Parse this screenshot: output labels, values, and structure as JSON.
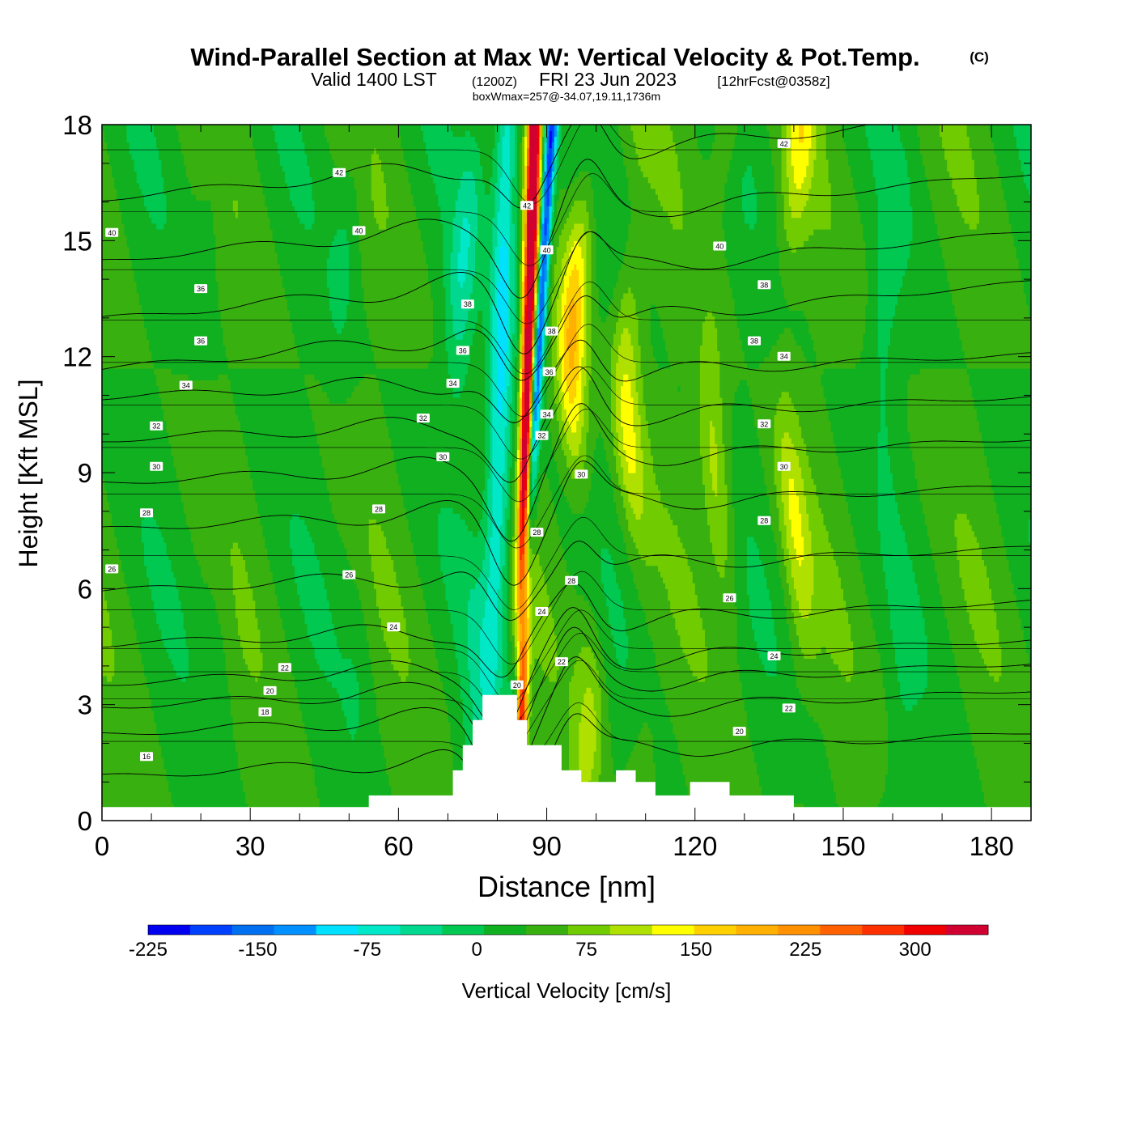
{
  "header": {
    "title": "Wind-Parallel Section at Max W: Vertical Velocity & Pot.Temp.",
    "copyright": "(C)",
    "valid_prefix": "Valid 1400 LST",
    "valid_zulu": "(1200Z)",
    "valid_date": "FRI 23 Jun 2023",
    "forecast": "[12hrFcst@0358z]",
    "box_info": "boxWmax=257@-34.07,19.11,1736m"
  },
  "chart_data": {
    "type": "heatmap",
    "title": "Wind-Parallel Section at Max W: Vertical Velocity & Pot.Temp.",
    "xlabel": "Distance [nm]",
    "ylabel": "Height [Kft MSL]",
    "xlim": [
      0,
      188
    ],
    "ylim": [
      0,
      18
    ],
    "x_ticks": [
      0,
      30,
      60,
      90,
      120,
      150,
      180
    ],
    "y_ticks": [
      0,
      3,
      6,
      9,
      12,
      15,
      18
    ],
    "colorbar": {
      "label": "Vertical Velocity [cm/s]",
      "range": [
        -225,
        350
      ],
      "step": 25,
      "tick_labels": [
        -225,
        -150,
        -75,
        0,
        75,
        150,
        225,
        300
      ],
      "colors": [
        "#0000f0",
        "#0040ff",
        "#0070f0",
        "#0090ff",
        "#00e0ff",
        "#00e8c8",
        "#00d890",
        "#00c850",
        "#10b020",
        "#38b010",
        "#70cc00",
        "#b0e000",
        "#ffff00",
        "#ffd000",
        "#ffb000",
        "#ff9000",
        "#ff6000",
        "#ff3000",
        "#f00000",
        "#d00030"
      ]
    },
    "background_w": 0,
    "updraft": {
      "x_base": 84,
      "x_top": 87.5,
      "peak_w": 340
    },
    "downdraft": {
      "x_base": 82.5,
      "x_top": 91,
      "min_w": -200
    },
    "wave_bands": [
      {
        "x": 74,
        "w": -60
      },
      {
        "x": 97,
        "w": 130
      },
      {
        "x": 108,
        "w": 80
      },
      {
        "x": 125,
        "w": 70
      },
      {
        "x": 140,
        "w": 75
      },
      {
        "x": 22,
        "w": -20
      },
      {
        "x": 50,
        "w": -25
      },
      {
        "x": 160,
        "w": -30
      }
    ],
    "terrain_kft": [
      [
        0,
        0.35
      ],
      [
        54,
        0.35
      ],
      [
        54,
        0.65
      ],
      [
        71,
        0.65
      ],
      [
        71,
        1.3
      ],
      [
        73,
        1.3
      ],
      [
        73,
        1.95
      ],
      [
        75,
        1.95
      ],
      [
        75,
        2.6
      ],
      [
        77,
        2.6
      ],
      [
        77,
        3.25
      ],
      [
        84,
        3.25
      ],
      [
        84,
        2.6
      ],
      [
        86,
        2.6
      ],
      [
        86,
        1.95
      ],
      [
        93,
        1.95
      ],
      [
        93,
        1.3
      ],
      [
        97,
        1.3
      ],
      [
        97,
        1.0
      ],
      [
        104,
        1.0
      ],
      [
        104,
        1.3
      ],
      [
        108,
        1.3
      ],
      [
        108,
        1.0
      ],
      [
        112,
        1.0
      ],
      [
        112,
        0.65
      ],
      [
        119,
        0.65
      ],
      [
        119,
        1.0
      ],
      [
        127,
        1.0
      ],
      [
        127,
        0.65
      ],
      [
        140,
        0.65
      ],
      [
        140,
        0.35
      ],
      [
        188,
        0.35
      ]
    ],
    "theta_contours": {
      "variable": "Potential Temperature",
      "levels": [
        16,
        18,
        20,
        22,
        24,
        26,
        28,
        30,
        32,
        34,
        36,
        38,
        40,
        42
      ],
      "labels": [
        {
          "text": "16",
          "x": 9,
          "y": 1.65
        },
        {
          "text": "18",
          "x": 33,
          "y": 2.8
        },
        {
          "text": "20",
          "x": 34,
          "y": 3.35
        },
        {
          "text": "22",
          "x": 37,
          "y": 3.95
        },
        {
          "text": "24",
          "x": 59,
          "y": 5.0
        },
        {
          "text": "26",
          "x": 2,
          "y": 6.5
        },
        {
          "text": "26",
          "x": 50,
          "y": 6.35
        },
        {
          "text": "28",
          "x": 9,
          "y": 7.95
        },
        {
          "text": "28",
          "x": 56,
          "y": 8.05
        },
        {
          "text": "30",
          "x": 11,
          "y": 9.15
        },
        {
          "text": "30",
          "x": 69,
          "y": 9.4
        },
        {
          "text": "32",
          "x": 11,
          "y": 10.2
        },
        {
          "text": "32",
          "x": 65,
          "y": 10.4
        },
        {
          "text": "34",
          "x": 17,
          "y": 11.25
        },
        {
          "text": "34",
          "x": 71,
          "y": 11.3
        },
        {
          "text": "36",
          "x": 20,
          "y": 12.4
        },
        {
          "text": "36",
          "x": 73,
          "y": 12.15
        },
        {
          "text": "36",
          "x": 20,
          "y": 13.75
        },
        {
          "text": "38",
          "x": 74,
          "y": 13.35
        },
        {
          "text": "40",
          "x": 2,
          "y": 15.2
        },
        {
          "text": "40",
          "x": 52,
          "y": 15.25
        },
        {
          "text": "42",
          "x": 48,
          "y": 16.75
        },
        {
          "text": "42",
          "x": 86,
          "y": 15.9
        },
        {
          "text": "40",
          "x": 90,
          "y": 14.75
        },
        {
          "text": "38",
          "x": 91,
          "y": 12.65
        },
        {
          "text": "36",
          "x": 90.5,
          "y": 11.6
        },
        {
          "text": "34",
          "x": 90,
          "y": 10.5
        },
        {
          "text": "32",
          "x": 89,
          "y": 9.95
        },
        {
          "text": "30",
          "x": 97,
          "y": 8.95
        },
        {
          "text": "28",
          "x": 88,
          "y": 7.45
        },
        {
          "text": "28",
          "x": 95,
          "y": 6.2
        },
        {
          "text": "24",
          "x": 89,
          "y": 5.4
        },
        {
          "text": "22",
          "x": 93,
          "y": 4.1
        },
        {
          "text": "20",
          "x": 84,
          "y": 3.5
        },
        {
          "text": "42",
          "x": 138,
          "y": 17.5
        },
        {
          "text": "40",
          "x": 125,
          "y": 14.85
        },
        {
          "text": "38",
          "x": 134,
          "y": 13.85
        },
        {
          "text": "38",
          "x": 132,
          "y": 12.4
        },
        {
          "text": "34",
          "x": 138,
          "y": 12.0
        },
        {
          "text": "32",
          "x": 134,
          "y": 10.25
        },
        {
          "text": "30",
          "x": 138,
          "y": 9.15
        },
        {
          "text": "28",
          "x": 134,
          "y": 7.75
        },
        {
          "text": "26",
          "x": 127,
          "y": 5.75
        },
        {
          "text": "24",
          "x": 136,
          "y": 4.25
        },
        {
          "text": "22",
          "x": 139,
          "y": 2.9
        },
        {
          "text": "20",
          "x": 129,
          "y": 2.3
        }
      ]
    }
  }
}
